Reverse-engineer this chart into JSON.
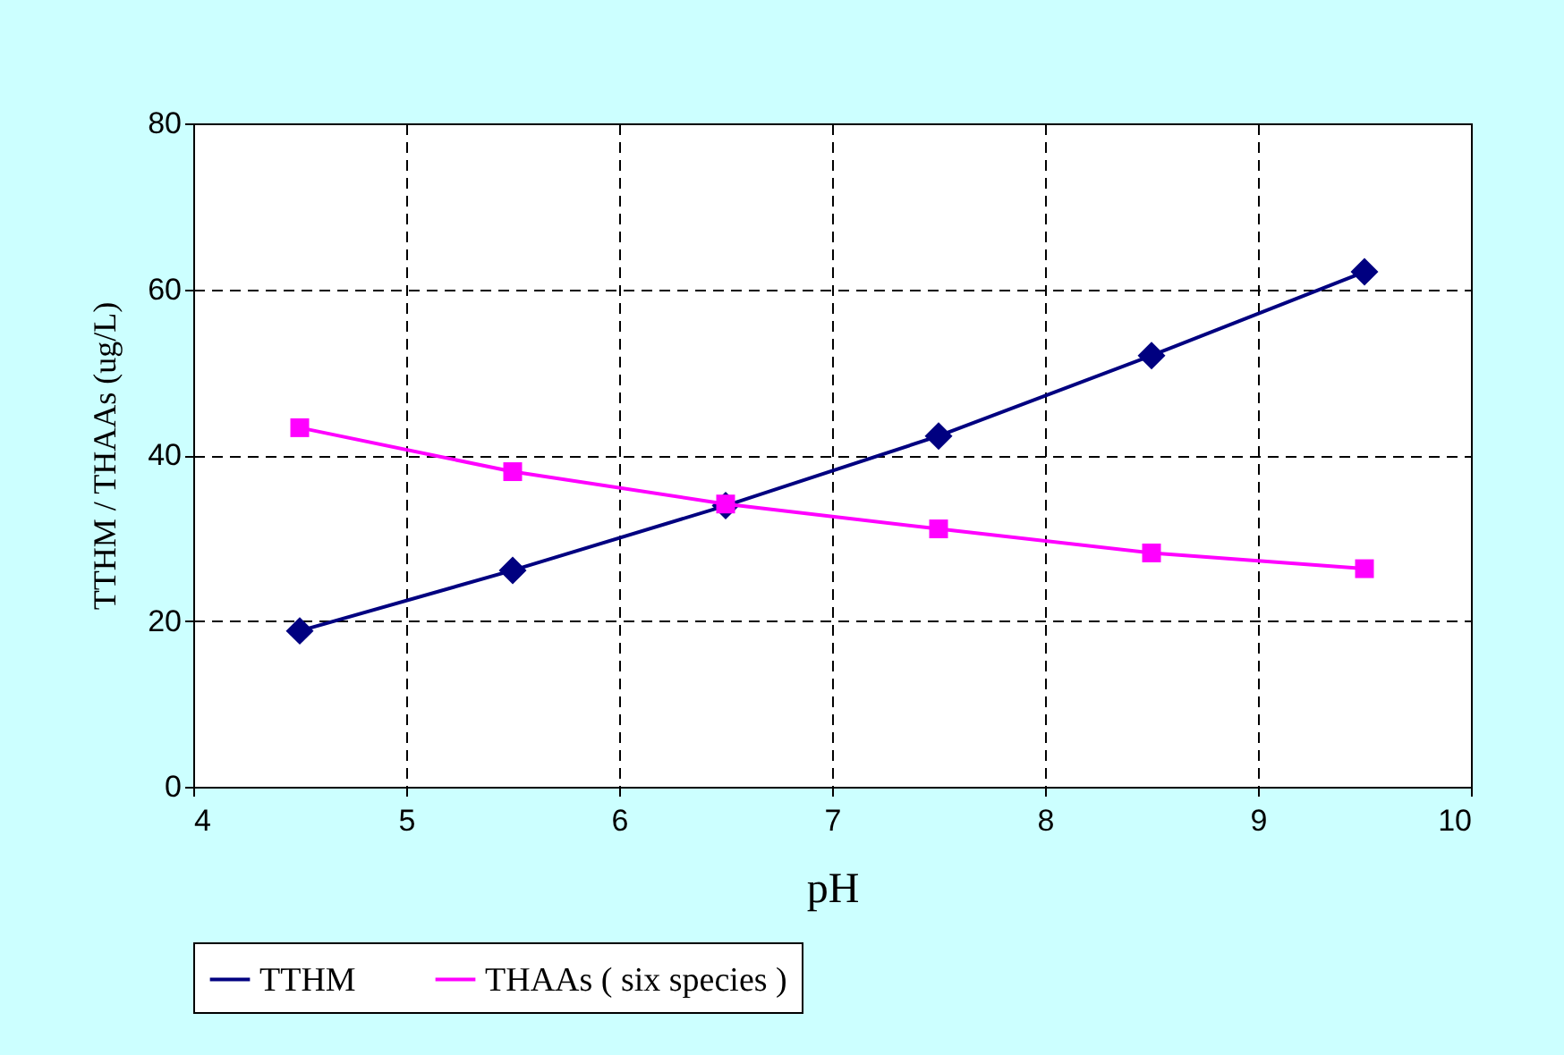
{
  "chart_data": {
    "type": "line",
    "xlabel": "pH",
    "ylabel": "TTHM / THAAs (ug/L)",
    "x": [
      4.5,
      5.5,
      6.5,
      7.5,
      8.5,
      9.5
    ],
    "series": [
      {
        "name": "TTHM",
        "color": "#000080",
        "marker": "diamond",
        "values": [
          18.8,
          26.1,
          33.9,
          42.3,
          52.0,
          62.1
        ]
      },
      {
        "name": "THAAs ( six species )",
        "color": "#ff00ff",
        "marker": "square",
        "values": [
          43.3,
          38.0,
          34.1,
          31.1,
          28.2,
          26.3
        ]
      }
    ],
    "xlim": [
      4,
      10
    ],
    "xticks": [
      4,
      5,
      6,
      7,
      8,
      9,
      10
    ],
    "ylim": [
      0,
      80
    ],
    "yticks": [
      0,
      20,
      40,
      60,
      80
    ],
    "grid": true,
    "legend": "bottom",
    "line_style": "solid"
  }
}
